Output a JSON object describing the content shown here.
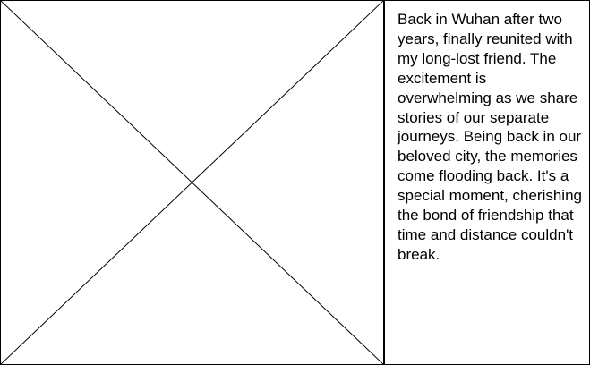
{
  "image": {
    "placeholder_icon": "image-placeholder-x-icon"
  },
  "caption": {
    "text": "Back in Wuhan after two years, finally reunited with my long-lost friend. The excitement is overwhelming as we share stories of our separate journeys. Being back in our beloved city, the memories come flooding back. It's a special moment, cherishing the bond of friendship that time and distance couldn't break."
  },
  "colors": {
    "border": "#000000",
    "background": "#ffffff",
    "text": "#000000"
  }
}
